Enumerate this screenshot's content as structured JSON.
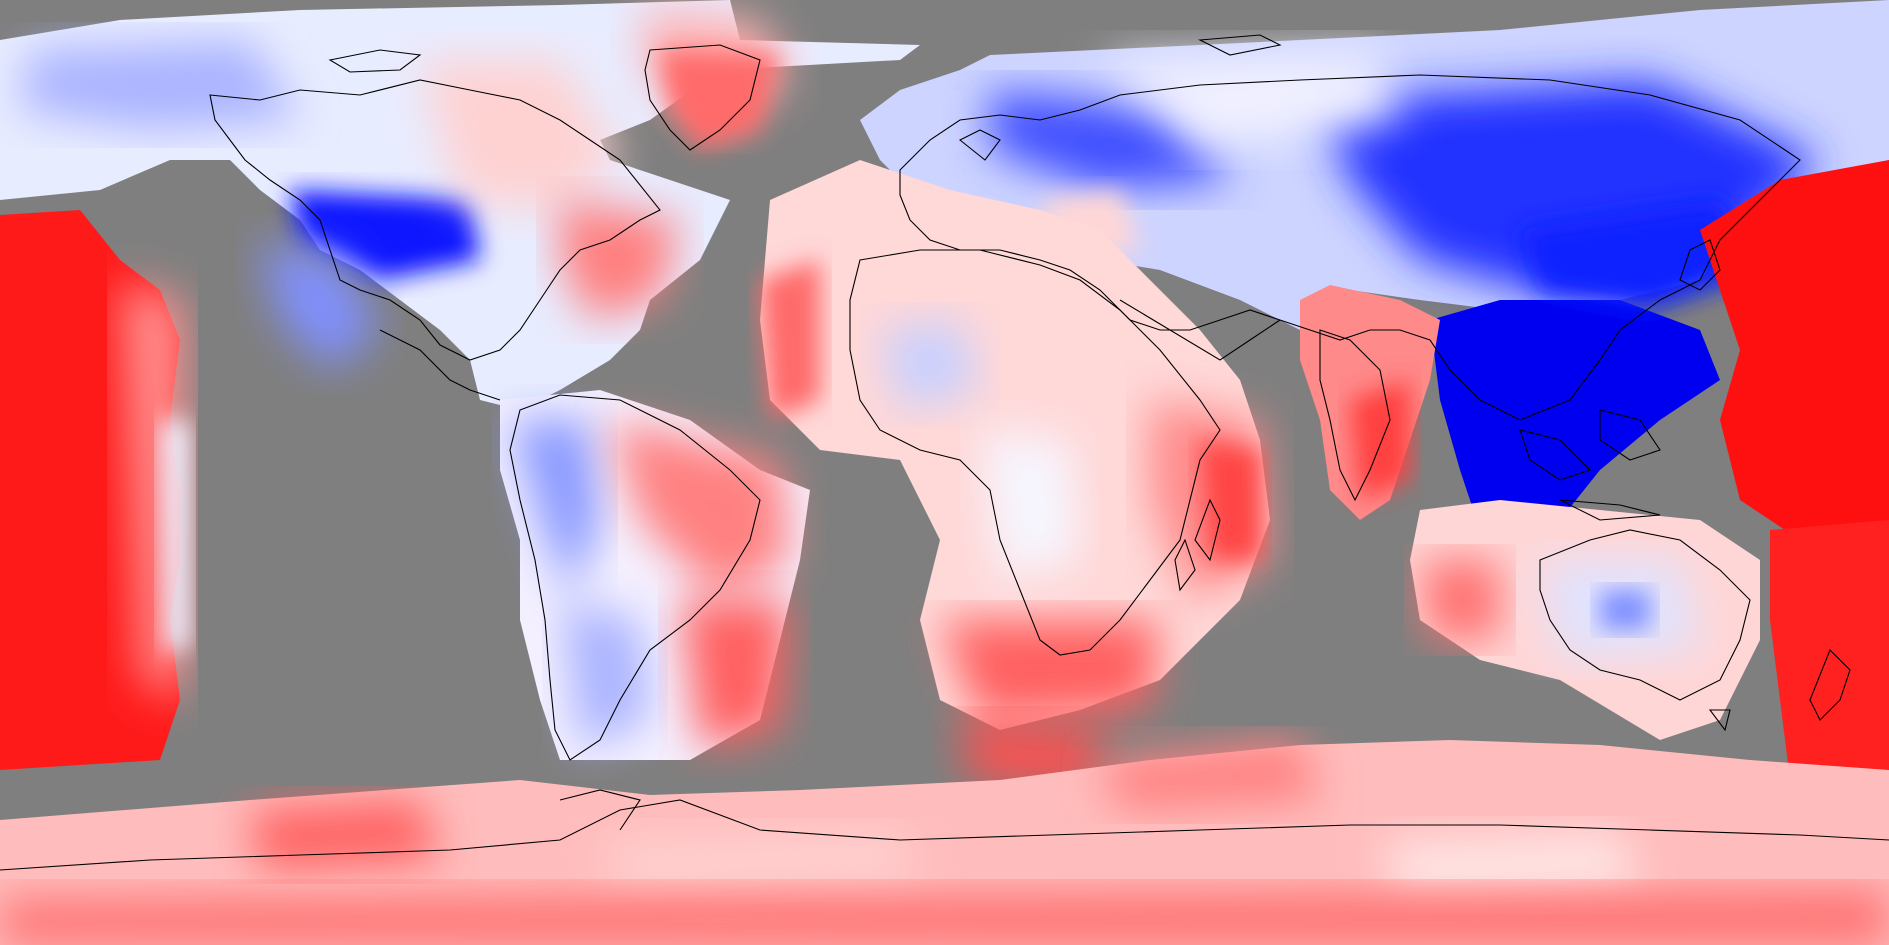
{
  "map": {
    "projection": "equirectangular",
    "background_color": "#7f7f7f",
    "colors": {
      "no_data": "#7f7f7f",
      "strong_negative": "#0000ff",
      "weak_negative": "#aab4ff",
      "neutral": "#ffffff",
      "weak_positive": "#ff9f9f",
      "strong_positive": "#ff0000",
      "coastline": "#000000"
    },
    "legend": null,
    "title": ""
  }
}
